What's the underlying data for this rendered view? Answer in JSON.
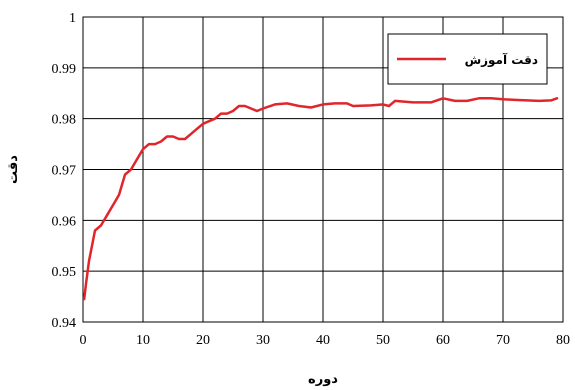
{
  "chart_data": {
    "type": "line",
    "xlabel": "دوره",
    "ylabel": "دقت",
    "xlim": [
      0,
      80
    ],
    "ylim": [
      0.94,
      1.0
    ],
    "x_ticks": [
      "0",
      "10",
      "20",
      "30",
      "40",
      "50",
      "60",
      "70",
      "80"
    ],
    "y_ticks": [
      "0.94",
      "0.95",
      "0.96",
      "0.97",
      "0.98",
      "0.99",
      "1"
    ],
    "grid": true,
    "legend_position": "top-right",
    "series": [
      {
        "name": "دقت آموزش",
        "color": "#e0262b",
        "x": [
          0.2,
          0.5,
          1,
          1.5,
          2,
          3,
          4,
          5,
          6,
          7,
          8,
          9,
          10,
          11,
          12,
          13,
          14,
          15,
          16,
          17,
          18,
          19,
          20,
          21,
          22,
          23,
          24,
          25,
          26,
          27,
          28,
          29,
          30,
          32,
          34,
          36,
          38,
          40,
          42,
          44,
          45,
          48,
          50,
          51,
          52,
          55,
          58,
          60,
          62,
          64,
          66,
          68,
          70,
          72,
          74,
          76,
          78,
          79
        ],
        "values": [
          0.9445,
          0.9475,
          0.952,
          0.955,
          0.958,
          0.959,
          0.961,
          0.963,
          0.965,
          0.969,
          0.97,
          0.972,
          0.974,
          0.975,
          0.975,
          0.9755,
          0.9765,
          0.9765,
          0.976,
          0.976,
          0.977,
          0.978,
          0.979,
          0.9795,
          0.98,
          0.981,
          0.981,
          0.9815,
          0.9825,
          0.9825,
          0.982,
          0.9815,
          0.982,
          0.9828,
          0.983,
          0.9825,
          0.9822,
          0.9828,
          0.983,
          0.983,
          0.9825,
          0.9826,
          0.9828,
          0.9825,
          0.9835,
          0.9832,
          0.9832,
          0.984,
          0.9835,
          0.9835,
          0.984,
          0.984,
          0.9838,
          0.9837,
          0.9836,
          0.9835,
          0.9836,
          0.984
        ]
      }
    ]
  }
}
